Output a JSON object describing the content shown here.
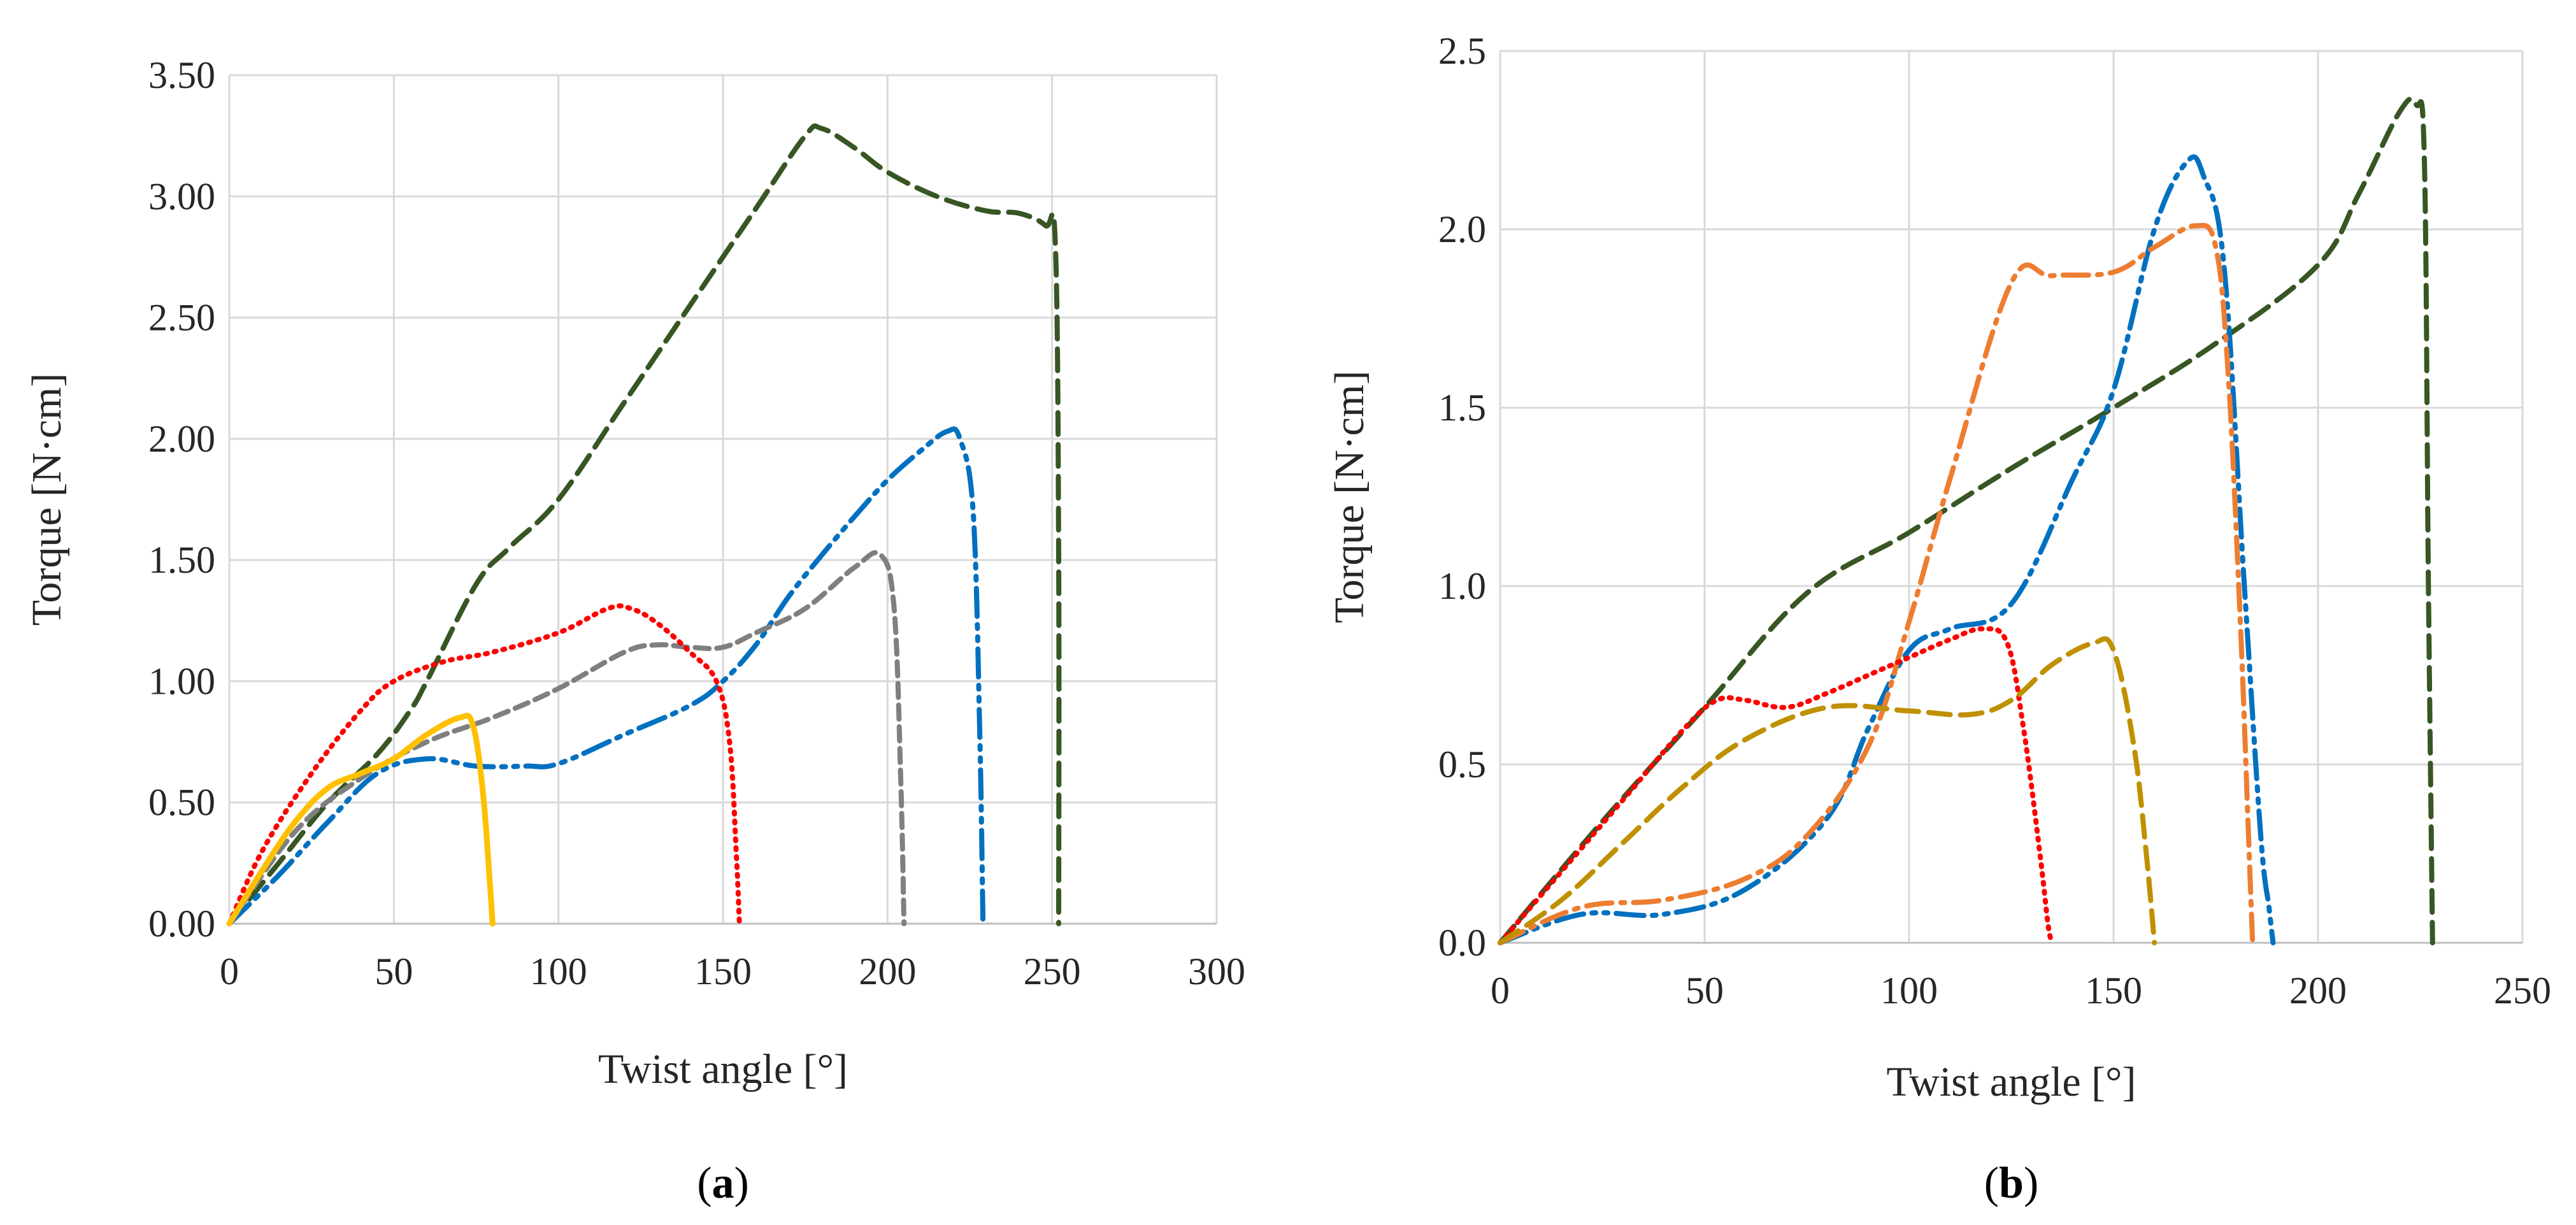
{
  "chart_data": [
    {
      "type": "line",
      "panel_label": "a",
      "title": "",
      "xlabel": "Twist angle [°]",
      "ylabel": "Torque [N·cm]",
      "xlim": [
        0,
        300
      ],
      "ylim": [
        0,
        3.5
      ],
      "xticks": [
        0,
        50,
        100,
        150,
        200,
        250,
        300
      ],
      "xtick_labels": [
        "0",
        "50",
        "100",
        "150",
        "200",
        "250",
        "300"
      ],
      "yticks": [
        0,
        0.5,
        1.0,
        1.5,
        2.0,
        2.5,
        3.0,
        3.5
      ],
      "ytick_labels": [
        "0.00",
        "0.50",
        "1.00",
        "1.50",
        "2.00",
        "2.50",
        "3.00",
        "3.50"
      ],
      "grid": true,
      "series": [
        {
          "name": "dark green dashed",
          "color": "#375623",
          "style": "dash",
          "x": [
            0,
            15,
            30,
            45,
            55,
            60,
            75,
            85,
            100,
            120,
            140,
            160,
            175,
            180,
            190,
            200,
            215,
            230,
            240,
            248,
            251,
            252,
            252
          ],
          "y": [
            0,
            0.25,
            0.5,
            0.7,
            0.88,
            1.0,
            1.4,
            1.55,
            1.75,
            2.15,
            2.55,
            2.95,
            3.25,
            3.28,
            3.2,
            3.1,
            3.0,
            2.94,
            2.93,
            2.88,
            2.8,
            1.5,
            0
          ]
        },
        {
          "name": "blue dash-dot-dot",
          "color": "#0070c0",
          "style": "dashdotdot",
          "x": [
            0,
            15,
            30,
            45,
            60,
            75,
            90,
            100,
            120,
            140,
            150,
            160,
            170,
            180,
            190,
            200,
            210,
            218,
            222,
            226,
            228,
            229
          ],
          "y": [
            0,
            0.2,
            0.42,
            0.62,
            0.68,
            0.65,
            0.65,
            0.66,
            0.78,
            0.9,
            1.0,
            1.15,
            1.35,
            1.52,
            1.68,
            1.83,
            1.95,
            2.03,
            2.0,
            1.7,
            0.8,
            0
          ]
        },
        {
          "name": "gray short dashed",
          "color": "#7f7f7f",
          "style": "shortdash",
          "x": [
            0,
            20,
            40,
            60,
            80,
            100,
            120,
            130,
            140,
            150,
            160,
            175,
            190,
            198,
            202,
            204,
            205
          ],
          "y": [
            0,
            0.38,
            0.6,
            0.75,
            0.85,
            0.97,
            1.12,
            1.15,
            1.14,
            1.14,
            1.2,
            1.3,
            1.47,
            1.52,
            1.3,
            0.6,
            0
          ]
        },
        {
          "name": "red dotted",
          "color": "#ff0000",
          "style": "dot",
          "x": [
            0,
            10,
            25,
            40,
            50,
            65,
            80,
            100,
            115,
            122,
            130,
            140,
            148,
            152,
            154,
            155
          ],
          "y": [
            0,
            0.3,
            0.62,
            0.88,
            1.0,
            1.08,
            1.12,
            1.2,
            1.3,
            1.3,
            1.24,
            1.12,
            1.0,
            0.75,
            0.3,
            0
          ]
        },
        {
          "name": "yellow solid",
          "color": "#ffc000",
          "style": "solid",
          "x": [
            0,
            10,
            20,
            30,
            40,
            50,
            60,
            70,
            74,
            77,
            79,
            80
          ],
          "y": [
            0,
            0.22,
            0.42,
            0.56,
            0.62,
            0.68,
            0.78,
            0.85,
            0.82,
            0.55,
            0.2,
            0
          ]
        }
      ]
    },
    {
      "type": "line",
      "panel_label": "b",
      "title": "",
      "xlabel": "Twist angle [°]",
      "ylabel": "Torque [N·cm]",
      "xlim": [
        0,
        250
      ],
      "ylim": [
        0,
        2.5
      ],
      "xticks": [
        0,
        50,
        100,
        150,
        200,
        250
      ],
      "xtick_labels": [
        "0",
        "50",
        "100",
        "150",
        "200",
        "250"
      ],
      "yticks": [
        0,
        0.5,
        1.0,
        1.5,
        2.0,
        2.5
      ],
      "ytick_labels": [
        "0.0",
        "0.5",
        "1.0",
        "1.5",
        "2.0",
        "2.5"
      ],
      "grid": true,
      "series": [
        {
          "name": "dark green dashed",
          "color": "#375623",
          "style": "dash",
          "x": [
            0,
            25,
            50,
            75,
            100,
            125,
            150,
            175,
            200,
            210,
            220,
            224,
            226,
            227,
            228
          ],
          "y": [
            0,
            0.34,
            0.66,
            0.98,
            1.15,
            1.33,
            1.5,
            1.68,
            1.9,
            2.1,
            2.33,
            2.35,
            2.2,
            1.0,
            0
          ]
        },
        {
          "name": "blue dash-dot-dot",
          "color": "#0070c0",
          "style": "dashdotdot",
          "x": [
            0,
            20,
            40,
            60,
            80,
            90,
            100,
            110,
            125,
            140,
            150,
            160,
            168,
            172,
            177,
            182,
            186,
            188,
            189
          ],
          "y": [
            0,
            0.08,
            0.08,
            0.15,
            0.35,
            0.6,
            0.82,
            0.88,
            0.95,
            1.3,
            1.55,
            2.0,
            2.19,
            2.15,
            1.9,
            1.0,
            0.3,
            0.1,
            0
          ]
        },
        {
          "name": "orange dash-dot",
          "color": "#ed7d31",
          "style": "dashdot",
          "x": [
            0,
            20,
            40,
            60,
            75,
            90,
            100,
            110,
            125,
            135,
            150,
            160,
            170,
            175,
            178,
            181,
            183,
            184
          ],
          "y": [
            0,
            0.1,
            0.12,
            0.18,
            0.3,
            0.55,
            0.9,
            1.3,
            1.85,
            1.87,
            1.88,
            1.95,
            2.01,
            1.95,
            1.6,
            0.9,
            0.3,
            0
          ]
        },
        {
          "name": "red dotted",
          "color": "#ff0000",
          "style": "dot",
          "x": [
            0,
            15,
            30,
            45,
            53,
            60,
            70,
            80,
            90,
            100,
            110,
            118,
            124,
            128,
            132,
            134,
            135
          ],
          "y": [
            0,
            0.2,
            0.4,
            0.6,
            0.68,
            0.68,
            0.66,
            0.7,
            0.75,
            0.8,
            0.85,
            0.88,
            0.84,
            0.6,
            0.25,
            0.05,
            0
          ]
        },
        {
          "name": "olive dashed",
          "color": "#bf9000",
          "style": "dash",
          "x": [
            0,
            15,
            30,
            45,
            60,
            80,
            100,
            115,
            125,
            135,
            145,
            150,
            155,
            158,
            160
          ],
          "y": [
            0,
            0.12,
            0.28,
            0.44,
            0.57,
            0.66,
            0.65,
            0.64,
            0.68,
            0.78,
            0.84,
            0.82,
            0.55,
            0.25,
            0
          ]
        }
      ]
    }
  ]
}
